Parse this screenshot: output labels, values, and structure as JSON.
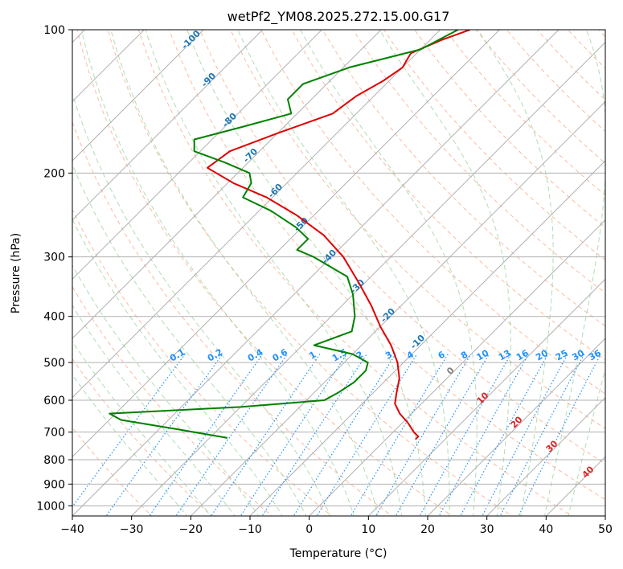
{
  "chart_data": {
    "type": "line",
    "title": "wetPf2_YM08.2025.272.15.00.G17",
    "xlabel": "Temperature (°C)",
    "ylabel": "Pressure (hPa)",
    "xlim": [
      -40,
      50
    ],
    "ylim": [
      1050,
      100
    ],
    "y_scale": "log",
    "x_ticks": [
      "−40",
      "−30",
      "−20",
      "−10",
      "0",
      "10",
      "20",
      "30",
      "40",
      "50"
    ],
    "y_ticks": [
      "100",
      "200",
      "300",
      "400",
      "500",
      "600",
      "700",
      "800",
      "900",
      "1000"
    ],
    "grid": true,
    "series": [
      {
        "color": "#e00000",
        "points": [
          [
            100,
            -55
          ],
          [
            105,
            -58
          ],
          [
            112,
            -61
          ],
          [
            120,
            -60
          ],
          [
            128,
            -61
          ],
          [
            138,
            -63
          ],
          [
            150,
            -64
          ],
          [
            165,
            -70
          ],
          [
            180,
            -75
          ],
          [
            195,
            -76
          ],
          [
            210,
            -69
          ],
          [
            225,
            -61
          ],
          [
            245,
            -53
          ],
          [
            270,
            -45
          ],
          [
            300,
            -38
          ],
          [
            340,
            -31
          ],
          [
            380,
            -25
          ],
          [
            420,
            -20
          ],
          [
            460,
            -15
          ],
          [
            500,
            -11
          ],
          [
            540,
            -8
          ],
          [
            580,
            -6
          ],
          [
            610,
            -4.5
          ],
          [
            640,
            -2
          ],
          [
            670,
            1
          ],
          [
            700,
            3.5
          ],
          [
            715,
            5
          ],
          [
            725,
            5
          ]
        ]
      },
      {
        "color": "#008000",
        "points": [
          [
            100,
            -57
          ],
          [
            110,
            -60
          ],
          [
            120,
            -69
          ],
          [
            130,
            -74
          ],
          [
            140,
            -74
          ],
          [
            150,
            -71
          ],
          [
            160,
            -77
          ],
          [
            170,
            -83
          ],
          [
            180,
            -81
          ],
          [
            190,
            -74
          ],
          [
            200,
            -68
          ],
          [
            210,
            -66
          ],
          [
            225,
            -65
          ],
          [
            240,
            -58
          ],
          [
            260,
            -51
          ],
          [
            275,
            -47
          ],
          [
            290,
            -47
          ],
          [
            300,
            -43
          ],
          [
            330,
            -34
          ],
          [
            360,
            -30
          ],
          [
            400,
            -26
          ],
          [
            430,
            -24
          ],
          [
            460,
            -28
          ],
          [
            480,
            -20
          ],
          [
            500,
            -16
          ],
          [
            520,
            -15
          ],
          [
            550,
            -15
          ],
          [
            580,
            -16
          ],
          [
            600,
            -17
          ],
          [
            620,
            -30
          ],
          [
            640,
            -51
          ],
          [
            660,
            -48
          ],
          [
            690,
            -37
          ],
          [
            720,
            -27
          ]
        ]
      }
    ],
    "reference_lines": {
      "dry_adiabats": "dashed salmon",
      "moist_adiabats": "dashed green",
      "isotherms": "solid grey, skewed",
      "mixing_ratio": "dotted blue"
    },
    "isotherm_labels": [
      {
        "t": -100,
        "text": "-100"
      },
      {
        "t": -90,
        "text": "-90"
      },
      {
        "t": -80,
        "text": "-80"
      },
      {
        "t": -70,
        "text": "-70"
      },
      {
        "t": -60,
        "text": "-60"
      },
      {
        "t": -50,
        "text": "-50"
      },
      {
        "t": -40,
        "text": "-40"
      },
      {
        "t": -30,
        "text": "-30"
      },
      {
        "t": -20,
        "text": "-20"
      },
      {
        "t": -10,
        "text": "-10"
      }
    ],
    "mixing_ratio_labels": [
      "0.1",
      "0.2",
      "0.4",
      "0.6",
      "1",
      "1.5",
      "2",
      "3",
      "4",
      "6",
      "8",
      "10",
      "13",
      "16",
      "20",
      "25",
      "30",
      "36"
    ],
    "moist_adiabat_labels": [
      {
        "text": "0",
        "color": "#808080"
      },
      {
        "text": "10",
        "color": "#d62728"
      },
      {
        "text": "20",
        "color": "#d62728"
      },
      {
        "text": "30",
        "color": "#d62728"
      },
      {
        "text": "40",
        "color": "#d62728"
      }
    ]
  }
}
